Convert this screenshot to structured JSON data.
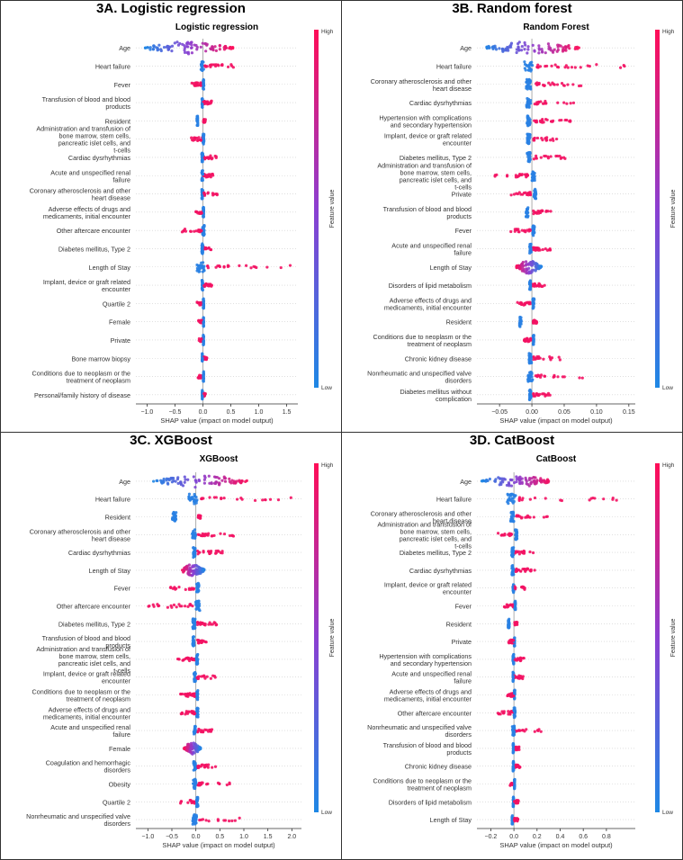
{
  "figure": {
    "panels": [
      {
        "label": "3A. Logistic regression"
      },
      {
        "label": "3B. Random forest"
      },
      {
        "label": "3C. XGBoost"
      },
      {
        "label": "3D. CatBoost"
      }
    ],
    "colorbar": {
      "high": "High",
      "low": "Low",
      "title": "Feature value"
    },
    "colors": {
      "low": "#1e88e5",
      "high": "#ff0d57",
      "mid": "#8b3fd1"
    }
  },
  "chart_data": [
    {
      "type": "scatter",
      "title": "Logistic regression",
      "xlabel": "SHAP value (impact on model output)",
      "xlim": [
        -1.2,
        1.7
      ],
      "xticks": [
        -1.0,
        -0.5,
        0.0,
        0.5,
        1.0,
        1.5
      ],
      "xtick_labels": [
        "−1.0",
        "−0.5",
        "0.0",
        "0.5",
        "1.0",
        "1.5"
      ],
      "features": [
        {
          "name": "Age",
          "lo": -1.05,
          "hi": 0.55,
          "blob": true,
          "high_side": "right"
        },
        {
          "name": "Heart failure",
          "lo": -0.02,
          "hi": 0.58,
          "high_side": "right"
        },
        {
          "name": "Fever",
          "lo": -0.2,
          "hi": 0.02,
          "high_side": "left"
        },
        {
          "name": "Transfusion of blood and blood products",
          "lo": -0.02,
          "hi": 0.16,
          "high_side": "right"
        },
        {
          "name": "Resident",
          "lo": -0.2,
          "hi": 0.05,
          "high_side": "right"
        },
        {
          "name": "Administration and transfusion of bone marrow, stem cells, pancreatic islet cells, and t-cells",
          "lo": -0.22,
          "hi": 0.02,
          "high_side": "left"
        },
        {
          "name": "Cardiac dysrhythmias",
          "lo": -0.02,
          "hi": 0.25,
          "high_side": "right"
        },
        {
          "name": "Acute and unspecified renal failure",
          "lo": -0.02,
          "hi": 0.22,
          "high_side": "right"
        },
        {
          "name": "Coronary atherosclerosis and other heart disease",
          "lo": -0.02,
          "hi": 0.26,
          "high_side": "right"
        },
        {
          "name": "Adverse effects of drugs and medicaments, initial encounter",
          "lo": -0.13,
          "hi": 0.02,
          "high_side": "left"
        },
        {
          "name": "Other aftercare encounter",
          "lo": -0.42,
          "hi": 0.02,
          "high_side": "left"
        },
        {
          "name": "Diabetes mellitus, Type 2",
          "lo": -0.02,
          "hi": 0.2,
          "high_side": "right"
        },
        {
          "name": "Length of Stay",
          "lo": -0.08,
          "hi": 1.6,
          "high_side": "right"
        },
        {
          "name": "Implant, device or graft related encounter",
          "lo": -0.02,
          "hi": 0.16,
          "high_side": "right"
        },
        {
          "name": "Quartile 2",
          "lo": -0.14,
          "hi": 0.02,
          "high_side": "left"
        },
        {
          "name": "Female",
          "lo": -0.08,
          "hi": 0.02,
          "high_side": "left"
        },
        {
          "name": "Private",
          "lo": -0.08,
          "hi": 0.02,
          "high_side": "left"
        },
        {
          "name": "Bone marrow biopsy",
          "lo": -0.02,
          "hi": 0.08,
          "high_side": "right"
        },
        {
          "name": "Conditions due to neoplasm or the treatment of neoplasm",
          "lo": -0.09,
          "hi": 0.02,
          "high_side": "left"
        },
        {
          "name": "Personal/family history of disease",
          "lo": -0.02,
          "hi": 0.05,
          "high_side": "right"
        }
      ]
    },
    {
      "type": "scatter",
      "title": "Random Forest",
      "xlabel": "SHAP value (impact on model output)",
      "xlim": [
        -0.085,
        0.16
      ],
      "xticks": [
        -0.05,
        0.0,
        0.05,
        0.1,
        0.15
      ],
      "xtick_labels": [
        "−0.05",
        "0.00",
        "0.05",
        "0.10",
        "0.15"
      ],
      "features": [
        {
          "name": "Age",
          "lo": -0.075,
          "hi": 0.075,
          "blob": true,
          "high_side": "right"
        },
        {
          "name": "Heart failure",
          "lo": -0.01,
          "hi": 0.15,
          "high_side": "right"
        },
        {
          "name": "Coronary atherosclerosis and other heart disease",
          "lo": -0.01,
          "hi": 0.085,
          "high_side": "right"
        },
        {
          "name": "Cardiac dysrhythmias",
          "lo": -0.01,
          "hi": 0.07,
          "high_side": "right"
        },
        {
          "name": "Hypertension with complications and secondary hypertension",
          "lo": -0.01,
          "hi": 0.062,
          "high_side": "right"
        },
        {
          "name": "Implant, device or graft related encounter",
          "lo": -0.01,
          "hi": 0.048,
          "high_side": "right"
        },
        {
          "name": "Diabetes mellitus, Type 2",
          "lo": -0.01,
          "hi": 0.052,
          "high_side": "right"
        },
        {
          "name": "Administration and transfusion of bone marrow, stem cells, pancreatic islet cells, and t-cells",
          "lo": -0.058,
          "hi": 0.005,
          "high_side": "left"
        },
        {
          "name": "Private",
          "lo": -0.032,
          "hi": 0.01,
          "high_side": "left"
        },
        {
          "name": "Transfusion of blood and blood products",
          "lo": -0.015,
          "hi": 0.03,
          "high_side": "right"
        },
        {
          "name": "Fever",
          "lo": -0.035,
          "hi": 0.005,
          "high_side": "left"
        },
        {
          "name": "Acute and unspecified renal failure",
          "lo": -0.005,
          "hi": 0.032,
          "high_side": "right"
        },
        {
          "name": "Length of Stay",
          "lo": -0.025,
          "hi": 0.015,
          "blob": true,
          "high_side": "left"
        },
        {
          "name": "Disorders of lipid metabolism",
          "lo": -0.006,
          "hi": 0.02,
          "high_side": "right"
        },
        {
          "name": "Adverse effects of drugs and medicaments, initial encounter",
          "lo": -0.025,
          "hi": 0.005,
          "high_side": "left"
        },
        {
          "name": "Resident",
          "lo": -0.035,
          "hi": 0.008,
          "high_side": "right"
        },
        {
          "name": "Conditions due to neoplasm or the treatment of neoplasm",
          "lo": -0.012,
          "hi": 0.005,
          "high_side": "left"
        },
        {
          "name": "Chronic kidney disease",
          "lo": -0.005,
          "hi": 0.045,
          "high_side": "right"
        },
        {
          "name": "Nonrheumatic and unspecified valve disorders",
          "lo": -0.005,
          "hi": 0.088,
          "high_side": "right"
        },
        {
          "name": "Diabetes mellitus without complication",
          "lo": -0.005,
          "hi": 0.03,
          "high_side": "right"
        }
      ]
    },
    {
      "type": "scatter",
      "title": "XGBoost",
      "xlabel": "SHAP value (impact on model output)",
      "xlim": [
        -1.25,
        2.2
      ],
      "xticks": [
        -1.0,
        -0.5,
        0.0,
        0.5,
        1.0,
        1.5,
        2.0
      ],
      "xtick_labels": [
        "−1.0",
        "−0.5",
        "0.0",
        "0.5",
        "1.0",
        "1.5",
        "2.0"
      ],
      "features": [
        {
          "name": "Age",
          "lo": -0.9,
          "hi": 1.1,
          "blob": true,
          "high_side": "right"
        },
        {
          "name": "Heart failure",
          "lo": -0.12,
          "hi": 2.05,
          "high_side": "right"
        },
        {
          "name": "Resident",
          "lo": -0.9,
          "hi": 0.1,
          "high_side": "right"
        },
        {
          "name": "Coronary atherosclerosis and other heart disease",
          "lo": -0.08,
          "hi": 0.82,
          "high_side": "right"
        },
        {
          "name": "Cardiac dysrhythmias",
          "lo": -0.08,
          "hi": 0.58,
          "high_side": "right"
        },
        {
          "name": "Length of Stay",
          "lo": -0.3,
          "hi": 0.18,
          "blob": true,
          "high_side": "left"
        },
        {
          "name": "Fever",
          "lo": -0.55,
          "hi": 0.08,
          "high_side": "left"
        },
        {
          "name": "Other aftercare encounter",
          "lo": -1.08,
          "hi": 0.08,
          "high_side": "left"
        },
        {
          "name": "Diabetes mellitus, Type 2",
          "lo": -0.08,
          "hi": 0.58,
          "high_side": "right"
        },
        {
          "name": "Transfusion of blood and blood products",
          "lo": -0.1,
          "hi": 0.3,
          "high_side": "right"
        },
        {
          "name": "Administration and transfusion of bone marrow, stem cells, pancreatic islet cells, and t-cells",
          "lo": -0.42,
          "hi": 0.05,
          "high_side": "left"
        },
        {
          "name": "Implant, device or graft related encounter",
          "lo": -0.05,
          "hi": 0.42,
          "high_side": "right"
        },
        {
          "name": "Conditions due to neoplasm or the treatment of neoplasm",
          "lo": -0.32,
          "hi": 0.06,
          "high_side": "left"
        },
        {
          "name": "Adverse effects of drugs and medicaments, initial encounter",
          "lo": -0.35,
          "hi": 0.06,
          "high_side": "left"
        },
        {
          "name": "Acute and unspecified renal failure",
          "lo": -0.05,
          "hi": 0.45,
          "high_side": "right"
        },
        {
          "name": "Female",
          "lo": -0.25,
          "hi": 0.1,
          "blob": true,
          "high_side": "left"
        },
        {
          "name": "Coagulation and hemorrhagic disorders",
          "lo": -0.05,
          "hi": 0.5,
          "high_side": "right"
        },
        {
          "name": "Obesity",
          "lo": -0.05,
          "hi": 0.75,
          "high_side": "right"
        },
        {
          "name": "Quartile 2",
          "lo": -0.32,
          "hi": 0.06,
          "high_side": "left"
        },
        {
          "name": "Nonrheumatic and unspecified valve disorders",
          "lo": -0.05,
          "hi": 0.98,
          "high_side": "right"
        }
      ]
    },
    {
      "type": "scatter",
      "title": "CatBoost",
      "xlabel": "SHAP value (impact on model output)",
      "xlim": [
        -0.32,
        1.05
      ],
      "xticks": [
        -0.2,
        0.0,
        0.2,
        0.4,
        0.6,
        0.8
      ],
      "xtick_labels": [
        "−0.2",
        "0.0",
        "0.2",
        "0.4",
        "0.6",
        "0.8"
      ],
      "features": [
        {
          "name": "Age",
          "lo": -0.28,
          "hi": 0.33,
          "blob": true,
          "high_side": "right"
        },
        {
          "name": "Heart failure",
          "lo": -0.04,
          "hi": 0.9,
          "high_side": "right"
        },
        {
          "name": "Coronary atherosclerosis and other heart disease",
          "lo": -0.03,
          "hi": 0.33,
          "high_side": "right"
        },
        {
          "name": "Administration and transfusion of bone marrow, stem cells, pancreatic islet cells, and t-cells",
          "lo": -0.15,
          "hi": 0.04,
          "high_side": "left"
        },
        {
          "name": "Diabetes mellitus, Type 2",
          "lo": -0.02,
          "hi": 0.19,
          "high_side": "right"
        },
        {
          "name": "Cardiac dysrhythmias",
          "lo": -0.02,
          "hi": 0.18,
          "high_side": "right"
        },
        {
          "name": "Implant, device or graft related encounter",
          "lo": -0.01,
          "hi": 0.1,
          "high_side": "right"
        },
        {
          "name": "Fever",
          "lo": -0.09,
          "hi": 0.02,
          "high_side": "left"
        },
        {
          "name": "Resident",
          "lo": -0.09,
          "hi": 0.03,
          "high_side": "right"
        },
        {
          "name": "Private",
          "lo": -0.05,
          "hi": 0.01,
          "high_side": "left"
        },
        {
          "name": "Hypertension with complications and secondary hypertension",
          "lo": -0.01,
          "hi": 0.09,
          "high_side": "right"
        },
        {
          "name": "Acute and unspecified renal failure",
          "lo": -0.01,
          "hi": 0.08,
          "high_side": "right"
        },
        {
          "name": "Adverse effects of drugs and medicaments, initial encounter",
          "lo": -0.06,
          "hi": 0.01,
          "high_side": "left"
        },
        {
          "name": "Other aftercare encounter",
          "lo": -0.14,
          "hi": 0.01,
          "high_side": "left"
        },
        {
          "name": "Nonrheumatic and unspecified valve disorders",
          "lo": -0.01,
          "hi": 0.24,
          "high_side": "right"
        },
        {
          "name": "Transfusion of blood and blood products",
          "lo": -0.01,
          "hi": 0.05,
          "high_side": "right"
        },
        {
          "name": "Chronic kidney disease",
          "lo": -0.01,
          "hi": 0.06,
          "high_side": "right"
        },
        {
          "name": "Conditions due to neoplasm or the treatment of neoplasm",
          "lo": -0.04,
          "hi": 0.01,
          "high_side": "left"
        },
        {
          "name": "Disorders of lipid metabolism",
          "lo": -0.01,
          "hi": 0.04,
          "high_side": "right"
        },
        {
          "name": "Length of Stay",
          "lo": -0.03,
          "hi": 0.04,
          "high_side": "right"
        }
      ]
    }
  ]
}
